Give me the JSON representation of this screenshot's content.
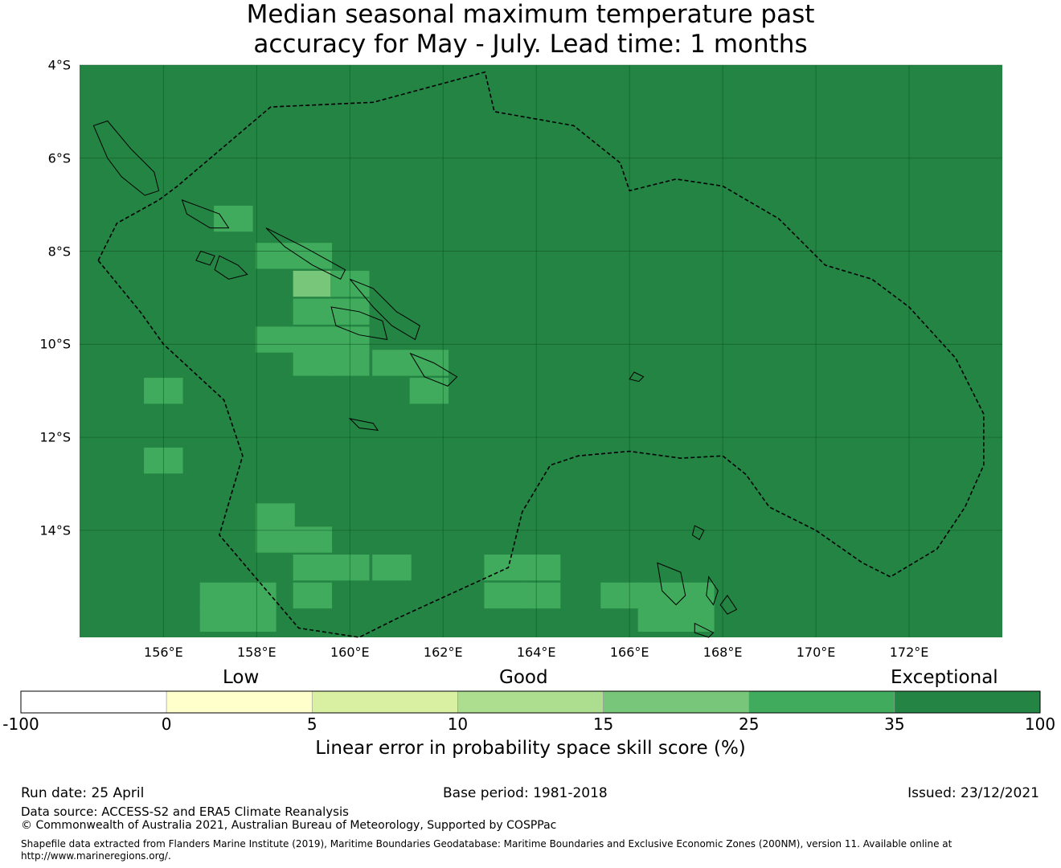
{
  "title_line1": "Median seasonal maximum temperature past",
  "title_line2": "accuracy for May - July. Lead time: 1 months",
  "map": {
    "lat_labels": [
      "4°S",
      "6°S",
      "8°S",
      "10°S",
      "12°S",
      "14°S"
    ],
    "lat_values": [
      -4,
      -6,
      -8,
      -10,
      -12,
      -14
    ],
    "lon_labels": [
      "156°E",
      "158°E",
      "160°E",
      "162°E",
      "164°E",
      "166°E",
      "168°E",
      "170°E",
      "172°E"
    ],
    "lon_values": [
      156,
      158,
      160,
      162,
      164,
      166,
      168,
      170,
      172
    ],
    "lon_range": [
      154.2,
      174.0
    ],
    "lat_range": [
      -16.3,
      -4.0
    ],
    "background_color": "#238443",
    "grid": true,
    "cells": [
      {
        "lon": 157.5,
        "lat": -7.3,
        "color": "#41ab5d"
      },
      {
        "lon": 158.4,
        "lat": -8.1,
        "color": "#41ab5d"
      },
      {
        "lon": 159.2,
        "lat": -8.1,
        "color": "#41ab5d"
      },
      {
        "lon": 159.2,
        "lat": -8.7,
        "color": "#78c679"
      },
      {
        "lon": 160.0,
        "lat": -8.7,
        "color": "#41ab5d"
      },
      {
        "lon": 160.0,
        "lat": -9.3,
        "color": "#41ab5d"
      },
      {
        "lon": 159.2,
        "lat": -9.3,
        "color": "#41ab5d"
      },
      {
        "lon": 158.4,
        "lat": -9.9,
        "color": "#41ab5d"
      },
      {
        "lon": 159.2,
        "lat": -9.9,
        "color": "#41ab5d"
      },
      {
        "lon": 160.0,
        "lat": -9.9,
        "color": "#41ab5d"
      },
      {
        "lon": 159.2,
        "lat": -10.4,
        "color": "#41ab5d"
      },
      {
        "lon": 160.0,
        "lat": -10.4,
        "color": "#41ab5d"
      },
      {
        "lon": 160.9,
        "lat": -10.4,
        "color": "#41ab5d"
      },
      {
        "lon": 161.7,
        "lat": -10.4,
        "color": "#41ab5d"
      },
      {
        "lon": 161.7,
        "lat": -11.0,
        "color": "#41ab5d"
      },
      {
        "lon": 156.0,
        "lat": -11.0,
        "color": "#41ab5d"
      },
      {
        "lon": 156.0,
        "lat": -12.5,
        "color": "#41ab5d"
      },
      {
        "lon": 158.4,
        "lat": -13.7,
        "color": "#41ab5d"
      },
      {
        "lon": 158.4,
        "lat": -14.2,
        "color": "#41ab5d"
      },
      {
        "lon": 159.2,
        "lat": -14.2,
        "color": "#41ab5d"
      },
      {
        "lon": 159.2,
        "lat": -14.8,
        "color": "#41ab5d"
      },
      {
        "lon": 159.2,
        "lat": -15.4,
        "color": "#41ab5d"
      },
      {
        "lon": 160.0,
        "lat": -14.8,
        "color": "#41ab5d"
      },
      {
        "lon": 160.9,
        "lat": -14.8,
        "color": "#41ab5d"
      },
      {
        "lon": 157.2,
        "lat": -15.4,
        "color": "#41ab5d"
      },
      {
        "lon": 158.0,
        "lat": -15.4,
        "color": "#41ab5d"
      },
      {
        "lon": 157.2,
        "lat": -15.9,
        "color": "#41ab5d"
      },
      {
        "lon": 158.0,
        "lat": -15.9,
        "color": "#41ab5d"
      },
      {
        "lon": 163.3,
        "lat": -14.8,
        "color": "#41ab5d"
      },
      {
        "lon": 164.1,
        "lat": -14.8,
        "color": "#41ab5d"
      },
      {
        "lon": 163.3,
        "lat": -15.4,
        "color": "#41ab5d"
      },
      {
        "lon": 164.1,
        "lat": -15.4,
        "color": "#41ab5d"
      },
      {
        "lon": 165.8,
        "lat": -15.4,
        "color": "#41ab5d"
      },
      {
        "lon": 166.6,
        "lat": -15.4,
        "color": "#41ab5d"
      },
      {
        "lon": 167.4,
        "lat": -15.4,
        "color": "#41ab5d"
      },
      {
        "lon": 167.4,
        "lat": -15.9,
        "color": "#41ab5d"
      },
      {
        "lon": 166.6,
        "lat": -15.9,
        "color": "#41ab5d"
      }
    ],
    "eez_boundary": [
      [
        154.6,
        -8.2
      ],
      [
        155.0,
        -7.4
      ],
      [
        155.9,
        -6.9
      ],
      [
        156.3,
        -6.6
      ],
      [
        158.3,
        -4.9
      ],
      [
        160.5,
        -4.8
      ],
      [
        162.9,
        -4.15
      ],
      [
        163.1,
        -5.0
      ],
      [
        164.8,
        -5.3
      ],
      [
        165.8,
        -6.1
      ],
      [
        166.0,
        -6.7
      ],
      [
        167.0,
        -6.45
      ],
      [
        168.0,
        -6.6
      ],
      [
        169.2,
        -7.3
      ],
      [
        170.2,
        -8.3
      ],
      [
        171.2,
        -8.6
      ],
      [
        172.0,
        -9.2
      ],
      [
        173.0,
        -10.3
      ],
      [
        173.6,
        -11.5
      ],
      [
        173.6,
        -12.6
      ],
      [
        173.2,
        -13.5
      ],
      [
        172.6,
        -14.4
      ],
      [
        171.6,
        -15.0
      ],
      [
        171.0,
        -14.7
      ],
      [
        170.0,
        -14.0
      ],
      [
        169.0,
        -13.5
      ],
      [
        168.5,
        -12.8
      ],
      [
        168.0,
        -12.4
      ],
      [
        167.1,
        -12.45
      ],
      [
        166.0,
        -12.3
      ],
      [
        164.9,
        -12.4
      ],
      [
        164.3,
        -12.6
      ],
      [
        163.7,
        -13.6
      ],
      [
        163.4,
        -14.8
      ],
      [
        161.0,
        -15.9
      ],
      [
        160.2,
        -16.3
      ],
      [
        158.9,
        -16.1
      ],
      [
        157.2,
        -14.1
      ],
      [
        157.7,
        -12.4
      ],
      [
        157.3,
        -11.2
      ],
      [
        156.0,
        -10.0
      ],
      [
        155.5,
        -9.3
      ],
      [
        154.6,
        -8.2
      ]
    ],
    "islands": [
      [
        [
          154.5,
          -5.3
        ],
        [
          154.8,
          -5.2
        ],
        [
          155.3,
          -5.8
        ],
        [
          155.8,
          -6.3
        ],
        [
          155.9,
          -6.7
        ],
        [
          155.6,
          -6.8
        ],
        [
          155.1,
          -6.4
        ],
        [
          154.8,
          -6.0
        ],
        [
          154.5,
          -5.3
        ]
      ],
      [
        [
          156.4,
          -6.9
        ],
        [
          157.2,
          -7.2
        ],
        [
          157.4,
          -7.5
        ],
        [
          157.0,
          -7.5
        ],
        [
          156.5,
          -7.2
        ],
        [
          156.4,
          -6.9
        ]
      ],
      [
        [
          158.2,
          -7.5
        ],
        [
          159.0,
          -7.9
        ],
        [
          159.9,
          -8.4
        ],
        [
          159.8,
          -8.6
        ],
        [
          159.2,
          -8.3
        ],
        [
          158.6,
          -7.9
        ],
        [
          158.2,
          -7.5
        ]
      ],
      [
        [
          160.0,
          -8.6
        ],
        [
          160.5,
          -8.8
        ],
        [
          161.0,
          -9.3
        ],
        [
          161.5,
          -9.6
        ],
        [
          161.4,
          -9.9
        ],
        [
          160.9,
          -9.6
        ],
        [
          160.5,
          -9.2
        ],
        [
          160.0,
          -8.6
        ]
      ],
      [
        [
          159.6,
          -9.2
        ],
        [
          160.2,
          -9.3
        ],
        [
          160.7,
          -9.5
        ],
        [
          160.8,
          -9.9
        ],
        [
          160.2,
          -9.8
        ],
        [
          159.7,
          -9.6
        ],
        [
          159.6,
          -9.2
        ]
      ],
      [
        [
          161.3,
          -10.2
        ],
        [
          161.8,
          -10.4
        ],
        [
          162.3,
          -10.7
        ],
        [
          162.1,
          -10.9
        ],
        [
          161.6,
          -10.7
        ],
        [
          161.3,
          -10.2
        ]
      ],
      [
        [
          157.2,
          -8.1
        ],
        [
          157.6,
          -8.3
        ],
        [
          157.8,
          -8.5
        ],
        [
          157.4,
          -8.6
        ],
        [
          157.1,
          -8.4
        ],
        [
          157.2,
          -8.1
        ]
      ],
      [
        [
          156.8,
          -8.0
        ],
        [
          157.1,
          -8.1
        ],
        [
          157.0,
          -8.3
        ],
        [
          156.7,
          -8.2
        ],
        [
          156.8,
          -8.0
        ]
      ],
      [
        [
          160.0,
          -11.6
        ],
        [
          160.5,
          -11.7
        ],
        [
          160.6,
          -11.85
        ],
        [
          160.2,
          -11.8
        ],
        [
          160.0,
          -11.6
        ]
      ],
      [
        [
          166.6,
          -14.7
        ],
        [
          167.1,
          -14.9
        ],
        [
          167.2,
          -15.4
        ],
        [
          167.0,
          -15.6
        ],
        [
          166.7,
          -15.3
        ],
        [
          166.6,
          -14.7
        ]
      ],
      [
        [
          167.7,
          -15.0
        ],
        [
          167.9,
          -15.3
        ],
        [
          167.8,
          -15.6
        ],
        [
          167.65,
          -15.4
        ],
        [
          167.7,
          -15.0
        ]
      ],
      [
        [
          168.1,
          -15.4
        ],
        [
          168.3,
          -15.7
        ],
        [
          168.1,
          -15.8
        ],
        [
          167.95,
          -15.6
        ],
        [
          168.1,
          -15.4
        ]
      ],
      [
        [
          167.4,
          -16.0
        ],
        [
          167.8,
          -16.2
        ],
        [
          167.7,
          -16.3
        ],
        [
          167.4,
          -16.2
        ],
        [
          167.4,
          -16.0
        ]
      ],
      [
        [
          166.1,
          -10.6
        ],
        [
          166.3,
          -10.7
        ],
        [
          166.2,
          -10.8
        ],
        [
          166.0,
          -10.75
        ],
        [
          166.1,
          -10.6
        ]
      ],
      [
        [
          167.4,
          -13.9
        ],
        [
          167.6,
          -14.0
        ],
        [
          167.5,
          -14.2
        ],
        [
          167.35,
          -14.1
        ],
        [
          167.4,
          -13.9
        ]
      ]
    ]
  },
  "category_labels": [
    "Low",
    "Good",
    "Exceptional"
  ],
  "colorbar": {
    "ticks": [
      "-100",
      "0",
      "5",
      "10",
      "15",
      "25",
      "35",
      "100"
    ],
    "colors": [
      "#ffffff",
      "#ffffcc",
      "#d9f0a3",
      "#addd8e",
      "#78c679",
      "#41ab5d",
      "#238443"
    ],
    "label": "Linear error in probability space skill score (%)"
  },
  "footer": {
    "run_date": "Run date: 25 April",
    "base_period": "Base period: 1981-2018",
    "issued": "Issued: 23/12/2021",
    "data_source": "Data source: ACCESS-S2 and ERA5 Climate Reanalysis",
    "copyright": "© Commonwealth of Australia 2021, Australian Bureau of Meteorology, Supported by COSPPac",
    "shapefile_line1": "Shapefile data extracted from Flanders Marine Institute (2019), Maritime Boundaries Geodatabase: Maritime Boundaries and Exclusive Economic Zones (200NM), version 11. Available online at",
    "shapefile_line2": "http://www.marineregions.org/."
  }
}
